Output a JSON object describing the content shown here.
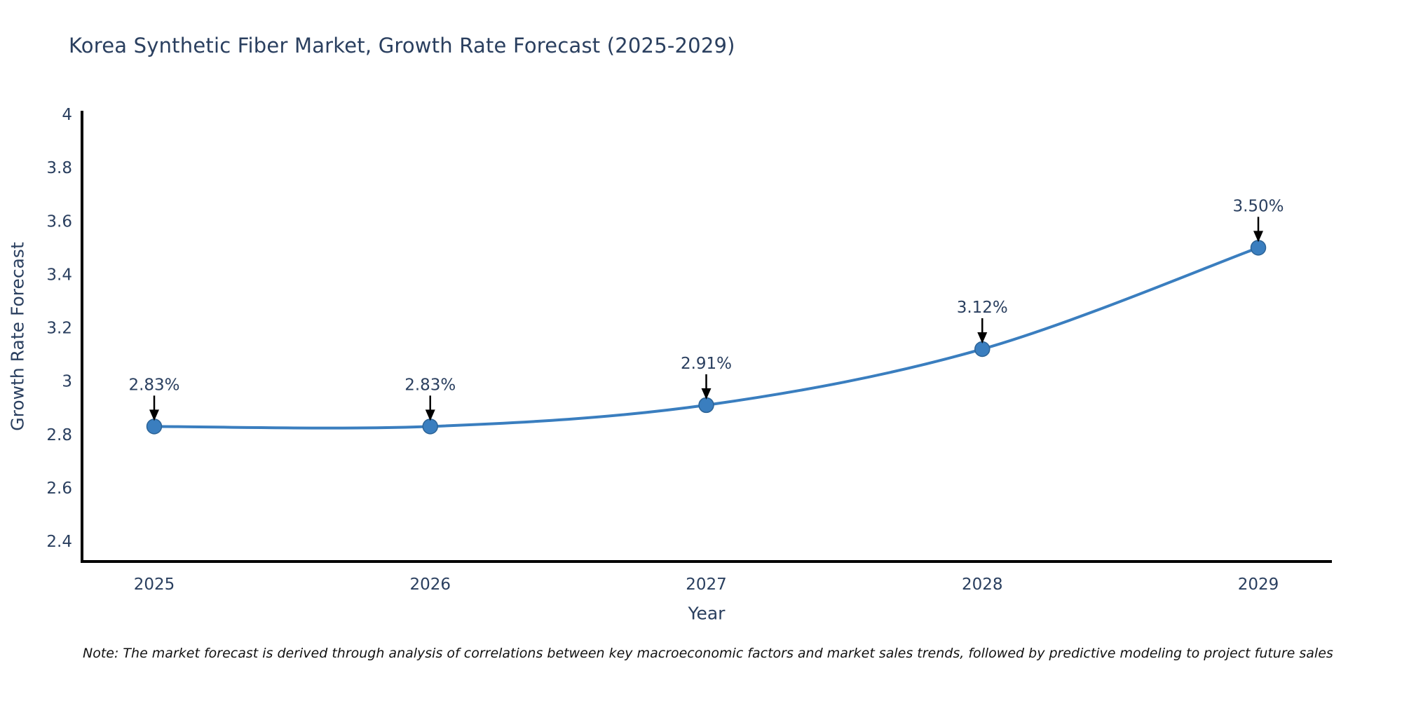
{
  "title": "Korea Synthetic Fiber Market, Growth Rate Forecast (2025-2029)",
  "note": "Note: The market forecast is derived through analysis of correlations between key macroeconomic factors and market sales trends, followed by predictive modeling to project future sales",
  "chart_data": {
    "type": "line",
    "title": "Korea Synthetic Fiber Market, Growth Rate Forecast (2025-2029)",
    "xlabel": "Year",
    "ylabel": "Growth Rate Forecast",
    "x": [
      2025,
      2026,
      2027,
      2028,
      2029
    ],
    "xtick_labels": [
      "2025",
      "2026",
      "2027",
      "2028",
      "2029"
    ],
    "series": [
      {
        "name": "Growth Rate Forecast",
        "values": [
          2.83,
          2.83,
          2.91,
          3.12,
          3.5
        ],
        "point_labels": [
          "2.83%",
          "2.83%",
          "2.91%",
          "3.12%",
          "3.50%"
        ]
      }
    ],
    "yticks": [
      2.4,
      2.6,
      2.8,
      3,
      3.2,
      3.4,
      3.6,
      3.8,
      4
    ],
    "ytick_labels": [
      "2.4",
      "2.6",
      "2.8",
      "3",
      "3.2",
      "3.4",
      "3.6",
      "3.8",
      "4"
    ],
    "ylim": [
      2.317,
      4.01
    ],
    "grid": false,
    "legend_position": "none",
    "line_color": "#3a7ebf",
    "marker_color": "#3a7ebf",
    "marker_edge_color": "#2c6396",
    "axis_color": "#000000",
    "text_color": "#2a3f5f",
    "annotation_arrow_color": "#000000",
    "background_color": "#ffffff"
  }
}
